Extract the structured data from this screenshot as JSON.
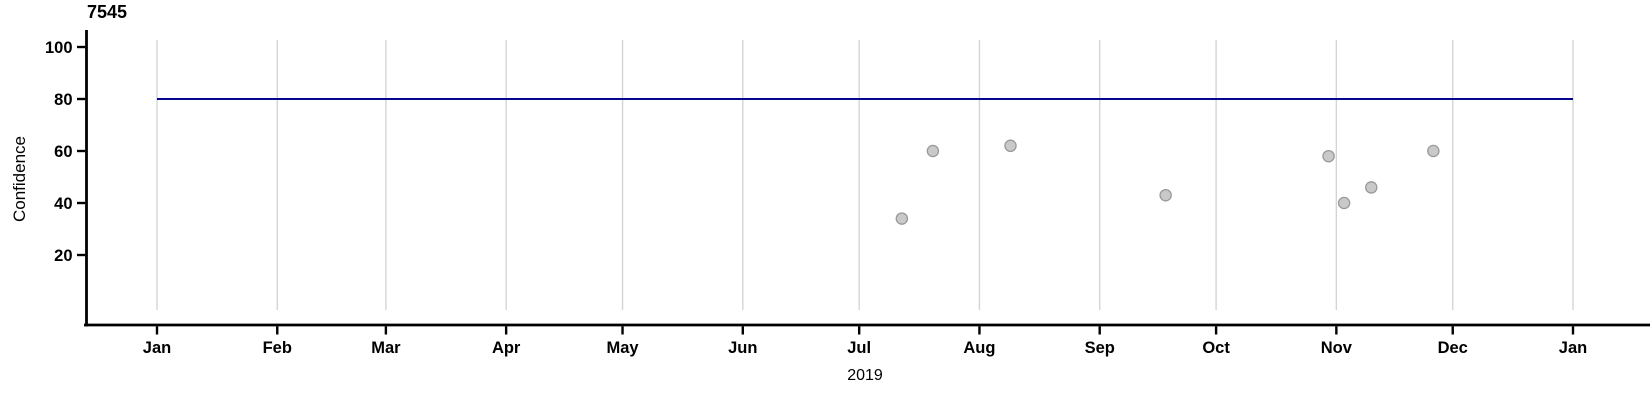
{
  "chart_data": {
    "type": "scatter",
    "title": "7545",
    "xlabel": "2019",
    "ylabel": "Confidence",
    "x_axis": {
      "tick_labels": [
        "Jan",
        "Feb",
        "Mar",
        "Apr",
        "May",
        "Jun",
        "Jul",
        "Aug",
        "Sep",
        "Oct",
        "Nov",
        "Dec",
        "Jan"
      ],
      "range": [
        "2019-01-01",
        "2020-01-01"
      ],
      "grid": "vertical line at each month"
    },
    "y_axis": {
      "tick_labels": [
        "20",
        "40",
        "60",
        "80",
        "100"
      ],
      "tick_values": [
        20,
        40,
        60,
        80,
        100
      ],
      "range": [
        0,
        106
      ]
    },
    "legend": "none",
    "reference_line": {
      "orientation": "horizontal",
      "value": 80
    },
    "series": [
      {
        "name": "Confidence",
        "points": [
          {
            "date": "2019-07-12",
            "value": 34
          },
          {
            "date": "2019-07-20",
            "value": 60
          },
          {
            "date": "2019-08-09",
            "value": 62
          },
          {
            "date": "2019-09-18",
            "value": 43
          },
          {
            "date": "2019-10-30",
            "value": 58
          },
          {
            "date": "2019-11-03",
            "value": 40
          },
          {
            "date": "2019-11-10",
            "value": 46
          },
          {
            "date": "2019-11-26",
            "value": 60
          }
        ]
      }
    ],
    "colors": {
      "background": "#FFFFFF",
      "gridline": "#D4D4D4",
      "axis": "#000000",
      "text": "#000000",
      "reference_line": "#06068F",
      "point_fill": "#C9C9C9",
      "point_stroke": "#9A9A9A"
    }
  }
}
